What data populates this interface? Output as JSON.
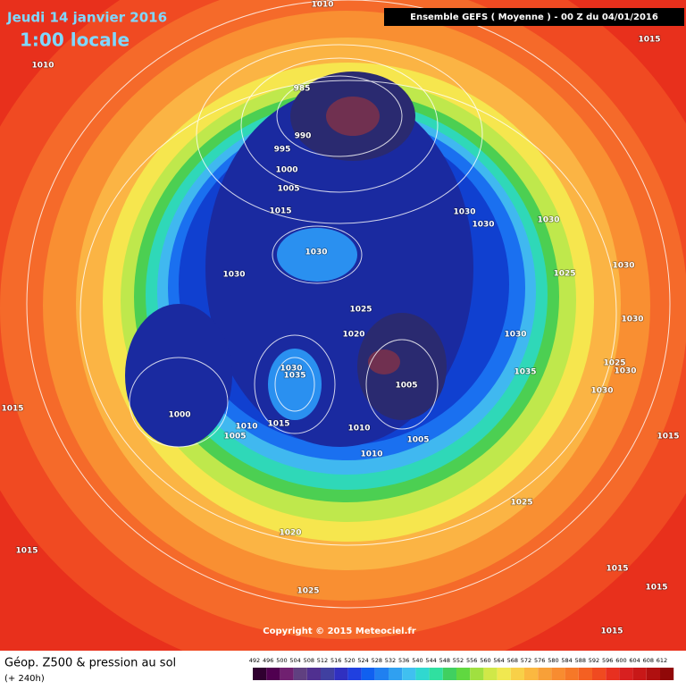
{
  "header": {
    "date": "Jeudi 14 janvier 2016",
    "time": "1:00 locale",
    "model": "Ensemble GEFS  ( Moyenne )  -  00 Z du 04/01/2016"
  },
  "map": {
    "isobar_labels": [
      "1010",
      "1015",
      "1010",
      "985",
      "990",
      "995",
      "1000",
      "1005",
      "1015",
      "1030",
      "1030",
      "1030",
      "1030",
      "1030",
      "1030",
      "1025",
      "1025",
      "1030",
      "1020",
      "1030",
      "1025",
      "1030",
      "1030",
      "1035",
      "1035",
      "1005",
      "1030",
      "1015",
      "1000",
      "1015",
      "1010",
      "1005",
      "1010",
      "1005",
      "1015",
      "1010",
      "1025",
      "1020",
      "1015",
      "1015",
      "1025",
      "1015",
      "1015"
    ],
    "copyright": "Copyright © 2015 Meteociel.fr"
  },
  "footer": {
    "title": "Géop. Z500 & pression au sol",
    "lead": "(+ 240h)",
    "scale": [
      "492",
      "496",
      "500",
      "504",
      "508",
      "512",
      "516",
      "520",
      "524",
      "528",
      "532",
      "536",
      "540",
      "544",
      "548",
      "552",
      "556",
      "560",
      "564",
      "568",
      "572",
      "576",
      "580",
      "584",
      "588",
      "592",
      "596",
      "600",
      "604",
      "608",
      "612"
    ]
  }
}
